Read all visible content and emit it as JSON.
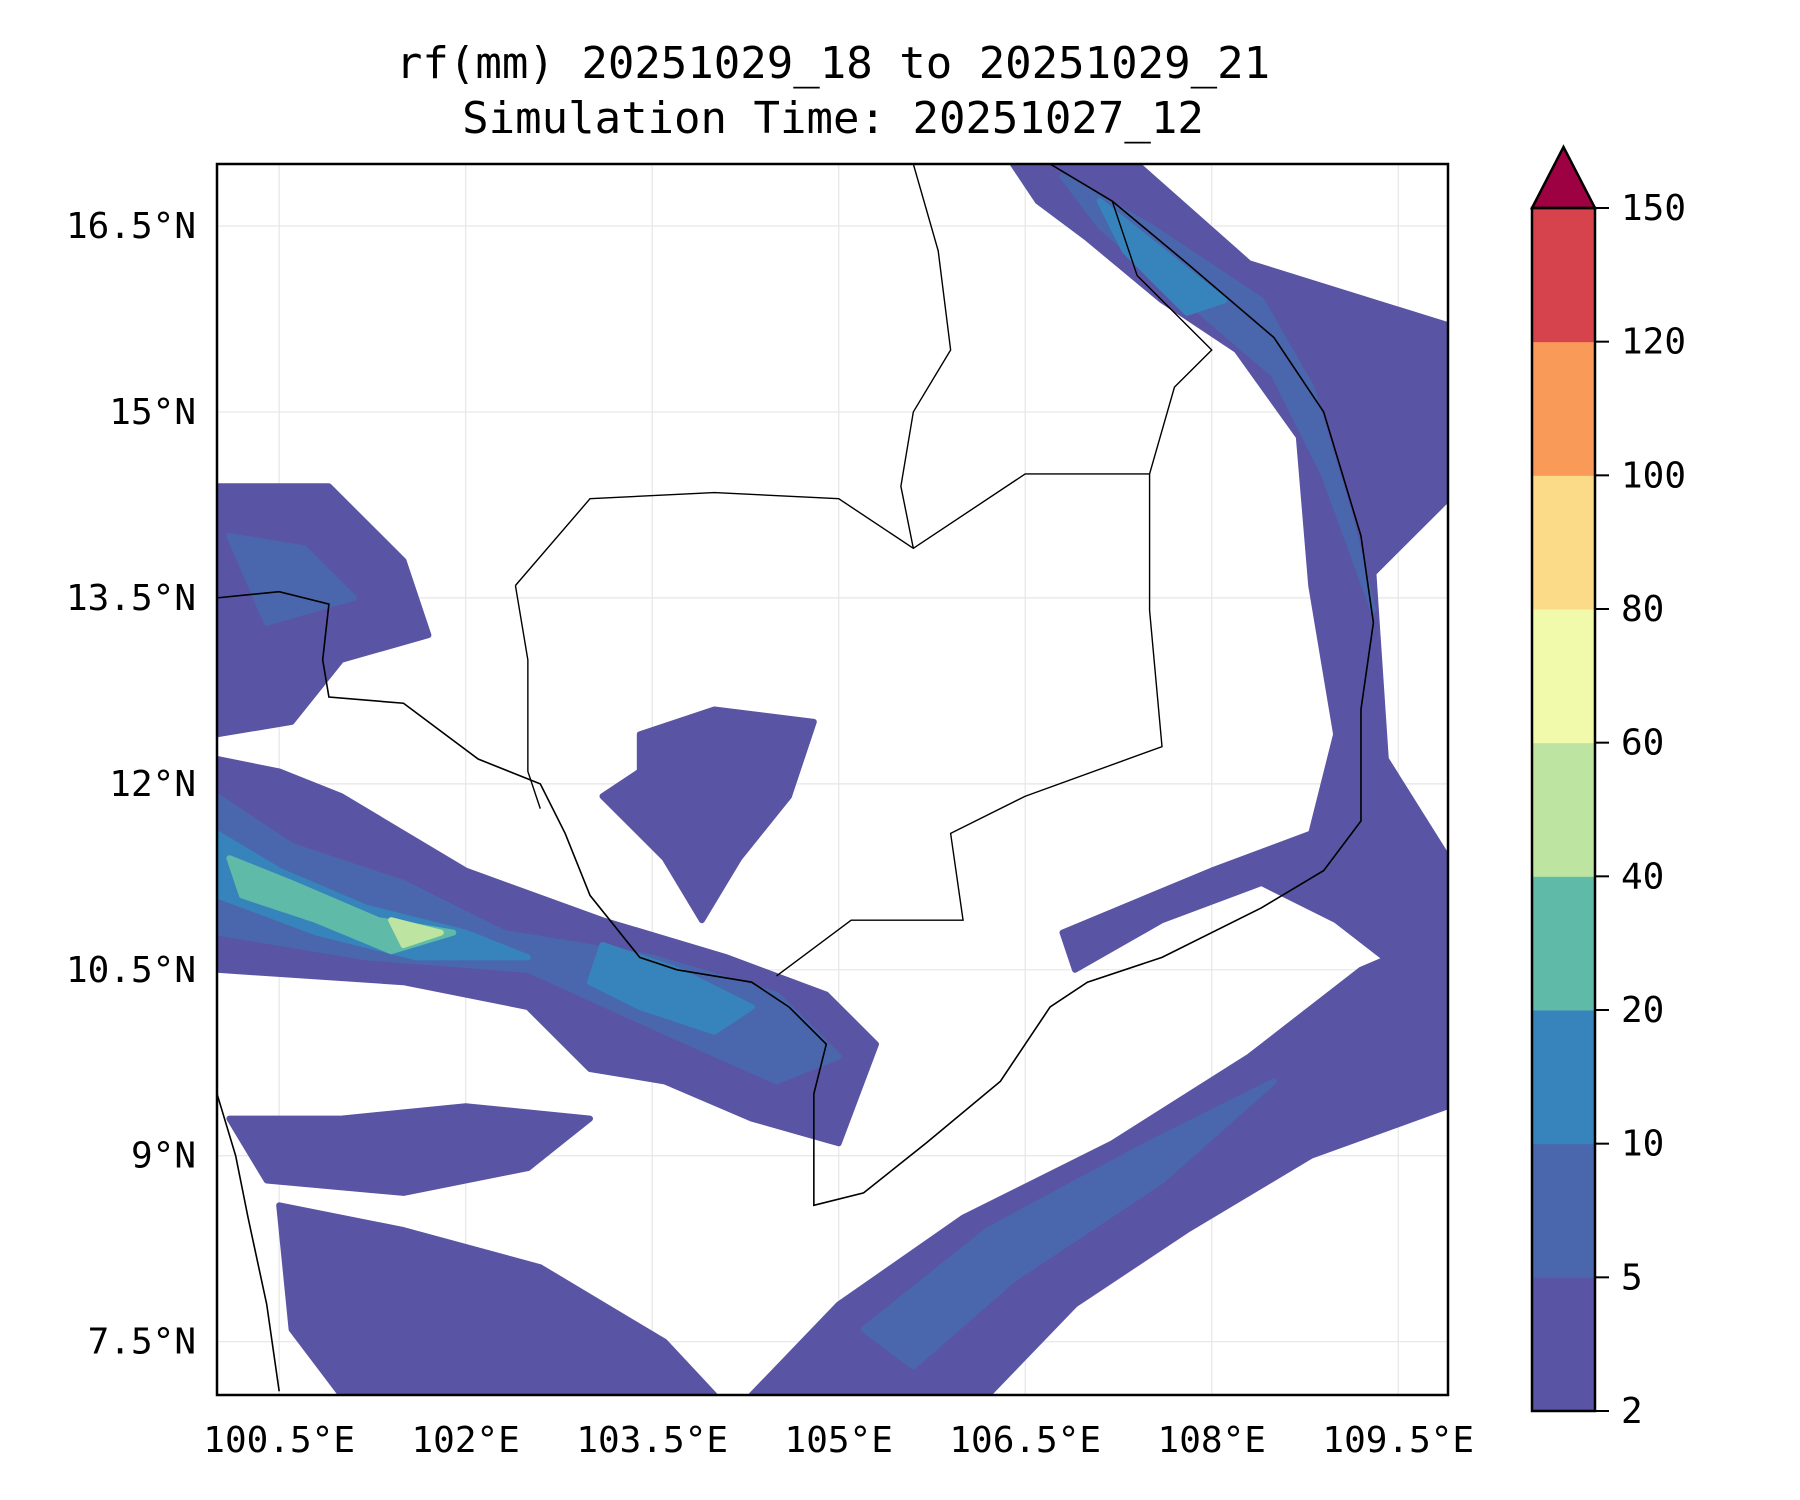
{
  "chart_data": {
    "type": "heatmap",
    "title": "rf(mm) 20251029_18 to 20251029_21",
    "subtitle": "Simulation Time: 20251027_12",
    "xlim": [
      100.0,
      109.9
    ],
    "ylim": [
      7.07,
      17.0
    ],
    "x_ticks": [
      100.5,
      102,
      103.5,
      105,
      106.5,
      108,
      109.5
    ],
    "x_tick_labels": [
      "100.5°E",
      "102°E",
      "103.5°E",
      "105°E",
      "106.5°E",
      "108°E",
      "109.5°E"
    ],
    "y_ticks": [
      16.5,
      15,
      13.5,
      12,
      10.5,
      9,
      7.5
    ],
    "y_tick_labels": [
      "16.5°N",
      "15°N",
      "13.5°N",
      "12°N",
      "10.5°N",
      "9°N",
      "7.5°N"
    ],
    "grid": true,
    "colorbar": {
      "levels": [
        2,
        5,
        10,
        20,
        40,
        60,
        80,
        100,
        120,
        150
      ],
      "labels": [
        "2",
        "5",
        "10",
        "20",
        "40",
        "60",
        "80",
        "100",
        "120",
        "150"
      ],
      "colors": [
        "#5954a4",
        "#4a67ad",
        "#3783bb",
        "#5fbaa8",
        "#bde4a0",
        "#f1f9ab",
        "#fbdb87",
        "#f99a58",
        "#d7434d"
      ],
      "extend_color": "#9e0142",
      "placement": "right"
    },
    "contours": [
      {
        "level": 0,
        "points": [
          [
            106.4,
            17
          ],
          [
            107.4,
            17
          ],
          [
            108.3,
            16.2
          ],
          [
            109.9,
            15.7
          ],
          [
            109.9,
            14.3
          ],
          [
            109.3,
            13.7
          ],
          [
            109.4,
            12.2
          ],
          [
            109.9,
            11.4
          ],
          [
            109.9,
            10.2
          ],
          [
            109.0,
            10.9
          ],
          [
            108.4,
            11.2
          ],
          [
            107.6,
            10.9
          ],
          [
            106.9,
            10.5
          ],
          [
            106.8,
            10.8
          ],
          [
            108.0,
            11.3
          ],
          [
            108.8,
            11.6
          ],
          [
            109.0,
            12.4
          ],
          [
            108.8,
            13.6
          ],
          [
            108.7,
            14.8
          ],
          [
            108.2,
            15.5
          ],
          [
            107.6,
            15.9
          ],
          [
            107.0,
            16.4
          ],
          [
            106.6,
            16.7
          ]
        ]
      },
      {
        "level": 0,
        "points": [
          [
            104.3,
            7.07
          ],
          [
            105.0,
            7.8
          ],
          [
            106.0,
            8.5
          ],
          [
            107.2,
            9.1
          ],
          [
            108.3,
            9.8
          ],
          [
            109.2,
            10.5
          ],
          [
            109.9,
            10.8
          ],
          [
            109.9,
            9.4
          ],
          [
            108.8,
            9.0
          ],
          [
            107.8,
            8.4
          ],
          [
            106.9,
            7.8
          ],
          [
            106.2,
            7.07
          ]
        ]
      },
      {
        "level": 0,
        "points": [
          [
            100,
            12.2
          ],
          [
            100.5,
            12.1
          ],
          [
            101,
            11.9
          ],
          [
            101.5,
            11.6
          ],
          [
            102,
            11.3
          ],
          [
            103.1,
            10.9
          ],
          [
            104.1,
            10.6
          ],
          [
            104.9,
            10.3
          ],
          [
            105.3,
            9.9
          ],
          [
            105.0,
            9.1
          ],
          [
            104.3,
            9.3
          ],
          [
            103.6,
            9.6
          ],
          [
            103.0,
            9.7
          ],
          [
            102.5,
            10.2
          ],
          [
            101.5,
            10.4
          ],
          [
            100,
            10.5
          ]
        ]
      },
      {
        "level": 0,
        "points": [
          [
            100,
            14.4
          ],
          [
            100.9,
            14.4
          ],
          [
            101.5,
            13.8
          ],
          [
            101.7,
            13.2
          ],
          [
            101.0,
            13.0
          ],
          [
            100.6,
            12.5
          ],
          [
            100,
            12.4
          ]
        ]
      },
      {
        "level": 0,
        "points": [
          [
            103.4,
            12.4
          ],
          [
            104.0,
            12.6
          ],
          [
            104.8,
            12.5
          ],
          [
            104.6,
            11.9
          ],
          [
            104.2,
            11.4
          ],
          [
            103.9,
            10.9
          ],
          [
            103.6,
            11.4
          ],
          [
            103.1,
            11.9
          ],
          [
            103.4,
            12.1
          ]
        ]
      },
      {
        "level": 0,
        "points": [
          [
            100.1,
            9.3
          ],
          [
            101,
            9.3
          ],
          [
            102.0,
            9.4
          ],
          [
            103.0,
            9.3
          ],
          [
            102.5,
            8.9
          ],
          [
            101.5,
            8.7
          ],
          [
            100.4,
            8.8
          ]
        ]
      },
      {
        "level": 0,
        "points": [
          [
            100.5,
            8.6
          ],
          [
            101.5,
            8.4
          ],
          [
            102.6,
            8.1
          ],
          [
            103.6,
            7.5
          ],
          [
            104.0,
            7.07
          ],
          [
            101.0,
            7.07
          ],
          [
            100.6,
            7.6
          ]
        ]
      },
      {
        "level": 1,
        "points": [
          [
            106.8,
            16.9
          ],
          [
            107.5,
            16.5
          ],
          [
            108.4,
            15.9
          ],
          [
            108.8,
            15.2
          ],
          [
            109.1,
            14.2
          ],
          [
            109.3,
            13.4
          ],
          [
            108.9,
            14.5
          ],
          [
            108.5,
            15.3
          ],
          [
            107.8,
            15.9
          ],
          [
            107.1,
            16.5
          ]
        ]
      },
      {
        "level": 1,
        "points": [
          [
            100,
            11.9
          ],
          [
            100.6,
            11.5
          ],
          [
            101.5,
            11.2
          ],
          [
            102.3,
            10.8
          ],
          [
            103.5,
            10.6
          ],
          [
            104.5,
            10.3
          ],
          [
            105.0,
            9.8
          ],
          [
            104.5,
            9.6
          ],
          [
            103.6,
            10.0
          ],
          [
            102.5,
            10.5
          ],
          [
            101.2,
            10.6
          ],
          [
            100,
            10.8
          ]
        ]
      },
      {
        "level": 1,
        "points": [
          [
            105.2,
            7.6
          ],
          [
            106.2,
            8.4
          ],
          [
            107.5,
            9.1
          ],
          [
            108.5,
            9.6
          ],
          [
            107.6,
            8.8
          ],
          [
            106.4,
            8.0
          ],
          [
            105.6,
            7.3
          ]
        ]
      },
      {
        "level": 1,
        "points": [
          [
            100.1,
            14.0
          ],
          [
            100.7,
            13.9
          ],
          [
            101.1,
            13.5
          ],
          [
            100.4,
            13.3
          ]
        ]
      },
      {
        "level": 2,
        "points": [
          [
            107.1,
            16.7
          ],
          [
            107.6,
            16.3
          ],
          [
            108.1,
            15.9
          ],
          [
            107.8,
            15.8
          ],
          [
            107.3,
            16.3
          ]
        ]
      },
      {
        "level": 2,
        "points": [
          [
            100,
            11.6
          ],
          [
            100.5,
            11.3
          ],
          [
            101.2,
            11.0
          ],
          [
            102.0,
            10.8
          ],
          [
            102.5,
            10.6
          ],
          [
            101.6,
            10.6
          ],
          [
            100.8,
            10.8
          ],
          [
            100,
            11.1
          ]
        ]
      },
      {
        "level": 2,
        "points": [
          [
            103.1,
            10.7
          ],
          [
            103.7,
            10.5
          ],
          [
            104.3,
            10.2
          ],
          [
            104.0,
            10.0
          ],
          [
            103.4,
            10.2
          ],
          [
            103.0,
            10.4
          ]
        ]
      },
      {
        "level": 3,
        "points": [
          [
            100.1,
            11.4
          ],
          [
            100.6,
            11.2
          ],
          [
            101.3,
            10.9
          ],
          [
            101.9,
            10.8
          ],
          [
            101.4,
            10.65
          ],
          [
            100.8,
            10.9
          ],
          [
            100.2,
            11.1
          ]
        ]
      },
      {
        "level": 4,
        "points": [
          [
            101.4,
            10.9
          ],
          [
            101.8,
            10.8
          ],
          [
            101.5,
            10.7
          ]
        ]
      }
    ],
    "coastlines": [
      [
        [
          100,
          13.5
        ],
        [
          100.5,
          13.55
        ],
        [
          100.9,
          13.45
        ],
        [
          100.85,
          13.0
        ],
        [
          100.9,
          12.7
        ],
        [
          101.5,
          12.65
        ],
        [
          102.1,
          12.2
        ],
        [
          102.6,
          12.0
        ],
        [
          102.8,
          11.6
        ],
        [
          103.0,
          11.1
        ],
        [
          103.4,
          10.6
        ],
        [
          103.7,
          10.5
        ],
        [
          104.3,
          10.4
        ],
        [
          104.6,
          10.2
        ],
        [
          104.9,
          9.9
        ],
        [
          104.8,
          9.5
        ],
        [
          104.8,
          8.6
        ],
        [
          105.2,
          8.7
        ],
        [
          105.7,
          9.1
        ],
        [
          106.3,
          9.6
        ],
        [
          106.7,
          10.2
        ],
        [
          107.0,
          10.4
        ],
        [
          107.6,
          10.6
        ],
        [
          108.4,
          11.0
        ],
        [
          108.9,
          11.3
        ],
        [
          109.2,
          11.7
        ],
        [
          109.2,
          12.6
        ],
        [
          109.3,
          13.3
        ],
        [
          109.2,
          14.0
        ],
        [
          108.9,
          15.0
        ],
        [
          108.5,
          15.6
        ],
        [
          107.8,
          16.2
        ],
        [
          107.2,
          16.7
        ],
        [
          106.7,
          17
        ]
      ],
      [
        [
          100,
          9.5
        ],
        [
          100.15,
          9.0
        ],
        [
          100.25,
          8.5
        ],
        [
          100.4,
          7.8
        ],
        [
          100.5,
          7.1
        ]
      ]
    ],
    "borders": [
      [
        [
          102.4,
          13.6
        ],
        [
          103.0,
          14.3
        ],
        [
          104.0,
          14.35
        ],
        [
          105.0,
          14.3
        ],
        [
          105.6,
          13.9
        ],
        [
          106.5,
          14.5
        ],
        [
          107.5,
          14.5
        ],
        [
          107.5,
          13.4
        ],
        [
          107.6,
          12.3
        ],
        [
          106.5,
          11.9
        ],
        [
          105.9,
          11.6
        ],
        [
          106.0,
          10.9
        ],
        [
          105.1,
          10.9
        ],
        [
          104.5,
          10.45
        ]
      ],
      [
        [
          102.4,
          13.6
        ],
        [
          102.5,
          13.0
        ],
        [
          102.5,
          12.1
        ],
        [
          102.6,
          11.8
        ]
      ],
      [
        [
          105.6,
          17
        ],
        [
          105.8,
          16.3
        ],
        [
          105.9,
          15.5
        ],
        [
          105.6,
          15.0
        ],
        [
          105.5,
          14.4
        ],
        [
          105.6,
          13.9
        ]
      ],
      [
        [
          107.5,
          14.5
        ],
        [
          107.7,
          15.2
        ],
        [
          108.0,
          15.5
        ],
        [
          107.4,
          16.1
        ],
        [
          107.2,
          16.7
        ]
      ]
    ]
  }
}
